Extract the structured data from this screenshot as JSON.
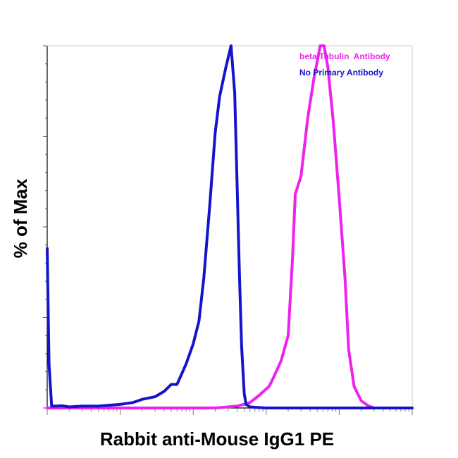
{
  "chart_data": {
    "type": "line",
    "title": "",
    "xlabel": "Rabbit anti-Mouse IgG1 PE",
    "ylabel": "% of Max",
    "x_scale": "log",
    "xlim": [
      1,
      100000
    ],
    "ylim": [
      0,
      100
    ],
    "grid": false,
    "legend": "top-right",
    "series": [
      {
        "name": "beta Tubulin  Antibody",
        "color": "#ee22ee",
        "x": [
          1,
          50,
          200,
          400,
          600,
          800,
          1100,
          1300,
          1600,
          2000,
          2300,
          2500,
          3000,
          3700,
          4500,
          5500,
          6200,
          7000,
          8300,
          10000,
          12000,
          13500,
          16000,
          20000,
          25000,
          30000,
          100000
        ],
        "y": [
          0,
          0,
          0,
          0.5,
          1.5,
          3.5,
          6,
          9,
          13,
          20,
          42,
          59,
          64,
          80,
          91,
          100,
          100,
          94,
          79,
          58,
          36,
          16,
          6,
          2,
          0.6,
          0,
          0
        ]
      },
      {
        "name": "No Primary Antibody",
        "color": "#1414cc",
        "x": [
          1,
          1.06,
          1.15,
          1.3,
          1.6,
          2,
          3,
          5,
          10,
          15,
          20,
          30,
          40,
          50,
          60,
          80,
          100,
          120,
          140,
          170,
          200,
          230,
          280,
          330,
          370,
          400,
          430,
          460,
          500,
          530,
          600,
          1000,
          100000
        ],
        "y": [
          44,
          12,
          0.5,
          0.5,
          0.6,
          0.3,
          0.5,
          0.5,
          1,
          1.5,
          2.4,
          3.1,
          4.6,
          6.5,
          6.5,
          12.2,
          17.7,
          24,
          36,
          57,
          76,
          86,
          94,
          100,
          87,
          61,
          37,
          17,
          4,
          1,
          0.3,
          0,
          0
        ]
      }
    ]
  }
}
